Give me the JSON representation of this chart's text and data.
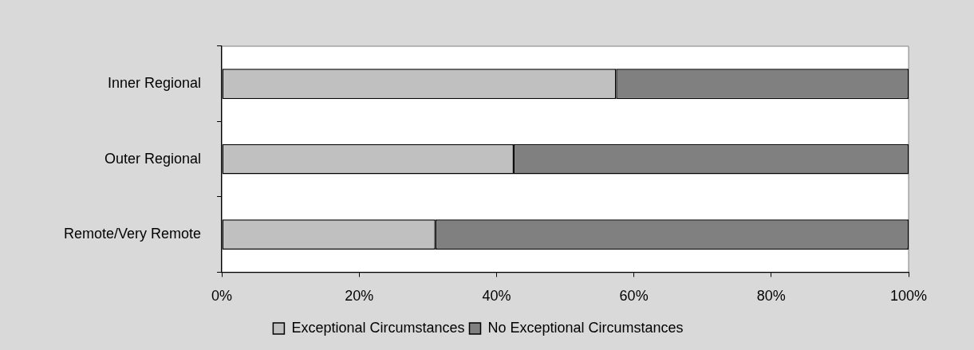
{
  "chart_data": {
    "type": "bar",
    "orientation": "horizontal",
    "stacked": true,
    "categories": [
      "Inner Regional",
      "Outer Regional",
      "Remote/Very Remote"
    ],
    "series": [
      {
        "name": "Exceptional Circumstances",
        "color": "#c0c0c0",
        "values": [
          57.4,
          42.5,
          31.1
        ]
      },
      {
        "name": "No Exceptional Circumstances",
        "color": "#808080",
        "values": [
          42.6,
          57.5,
          68.9
        ]
      }
    ],
    "xlim": [
      0,
      100
    ],
    "xticks": [
      {
        "value": 0,
        "label": "0%"
      },
      {
        "value": 20,
        "label": "20%"
      },
      {
        "value": 40,
        "label": "40%"
      },
      {
        "value": 60,
        "label": "60%"
      },
      {
        "value": 80,
        "label": "80%"
      },
      {
        "value": 100,
        "label": "100%"
      }
    ],
    "grid": false,
    "legend": "bottom"
  }
}
